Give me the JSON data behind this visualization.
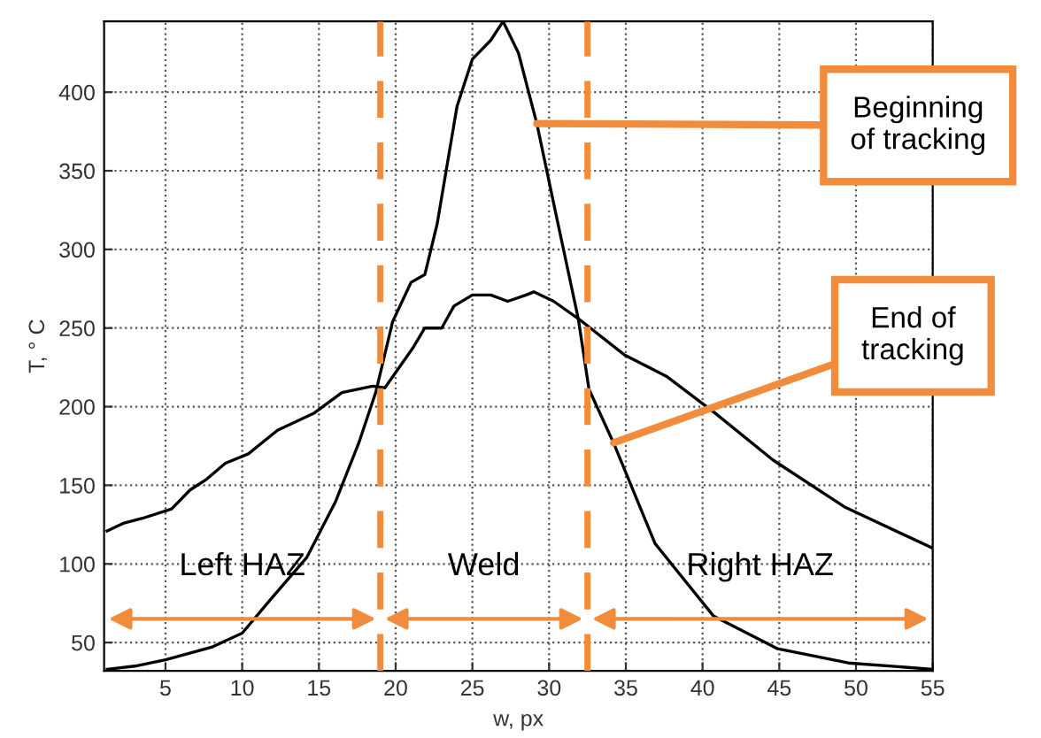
{
  "chart_data": {
    "type": "line",
    "xlabel": "w, px",
    "ylabel": "T, ° C",
    "xlim": [
      1,
      55
    ],
    "ylim": [
      32,
      445
    ],
    "xticks": [
      5,
      10,
      15,
      20,
      25,
      30,
      35,
      40,
      45,
      50,
      55
    ],
    "yticks": [
      50,
      100,
      150,
      200,
      250,
      300,
      350,
      400
    ],
    "grid": true,
    "line_style": "solid",
    "marker": "none",
    "series": [
      {
        "color": "#000000",
        "x": [
          1.2,
          3,
          5,
          8,
          10,
          11.9,
          14.2,
          16.1,
          17.6,
          18.7,
          19.8,
          21,
          21.9,
          22.7,
          24,
          25,
          26.2,
          27,
          28,
          29.2,
          30.5,
          31.9,
          32.6,
          34.2,
          36.9,
          40.7,
          44.9,
          49.5,
          55
        ],
        "values": [
          33,
          35,
          39,
          47,
          56,
          78,
          104,
          140,
          177,
          209,
          254,
          279,
          284,
          316,
          391,
          421,
          433,
          445,
          425,
          380,
          320,
          256,
          211,
          177,
          113,
          67,
          46,
          37,
          33
        ]
      },
      {
        "color": "#000000",
        "x": [
          1.2,
          2.3,
          3.5,
          5.4,
          6.6,
          7.7,
          8.9,
          10.4,
          12.3,
          14.7,
          16.5,
          18.5,
          19.3,
          21.1,
          21.9,
          23,
          23.8,
          25,
          26.2,
          27.3,
          28.5,
          29,
          30.3,
          31.9,
          34.9,
          37.7,
          40.8,
          44.6,
          49.3,
          55
        ],
        "values": [
          121,
          126,
          129,
          135,
          147,
          154,
          164,
          170,
          185,
          196,
          209,
          213,
          212,
          237,
          250,
          250,
          264,
          271,
          271,
          267,
          271,
          273,
          267,
          256,
          233,
          219,
          196,
          166,
          136,
          110
        ]
      }
    ],
    "ref_lines": [
      {
        "axis": "x",
        "value": 19,
        "color": "#f08c3c",
        "line_style": "dashed"
      },
      {
        "axis": "x",
        "value": 32.5,
        "color": "#f08c3c",
        "line_style": "dashed"
      }
    ],
    "annotations": [
      "Left HAZ",
      "Weld",
      "Right HAZ",
      {
        "text": "Beginning\nof tracking",
        "x": 29.2,
        "y": 380
      },
      {
        "text": "End of\ntracking",
        "x": 34.2,
        "y": 177
      }
    ]
  }
}
